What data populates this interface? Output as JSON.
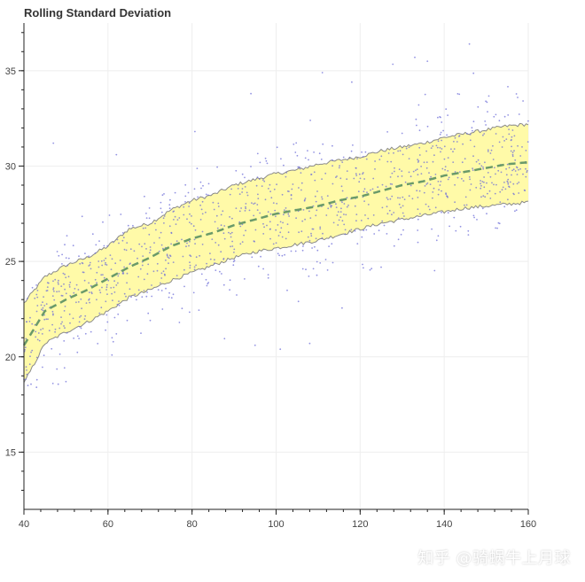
{
  "chart_data": {
    "type": "area",
    "title": "Rolling Standard Deviation",
    "xlabel": "",
    "ylabel": "",
    "xlim": [
      40,
      160
    ],
    "ylim": [
      12,
      37.5
    ],
    "x_ticks": [
      "40",
      "60",
      "80",
      "100",
      "120",
      "140",
      "160"
    ],
    "y_ticks": [
      "15",
      "20",
      "25",
      "30",
      "35"
    ],
    "grid": true,
    "x": [
      40,
      45,
      50,
      55,
      60,
      65,
      70,
      75,
      80,
      85,
      90,
      95,
      100,
      105,
      110,
      115,
      120,
      125,
      130,
      135,
      140,
      145,
      150,
      155,
      160
    ],
    "rolling_mean": [
      20.6,
      22.4,
      23.0,
      23.5,
      24.1,
      24.7,
      25.2,
      25.8,
      26.2,
      26.5,
      26.9,
      27.2,
      27.5,
      27.7,
      27.9,
      28.2,
      28.4,
      28.7,
      29.0,
      29.2,
      29.5,
      29.7,
      29.9,
      30.1,
      30.2
    ],
    "band_upper": [
      22.8,
      24.2,
      24.8,
      25.2,
      25.8,
      26.7,
      27.0,
      27.7,
      28.2,
      28.5,
      29.0,
      29.3,
      29.6,
      29.8,
      30.1,
      30.3,
      30.5,
      30.8,
      31.0,
      31.2,
      31.5,
      31.7,
      31.9,
      32.1,
      32.2
    ],
    "band_lower": [
      18.6,
      20.7,
      21.3,
      21.8,
      22.4,
      23.1,
      23.5,
      24.0,
      24.4,
      24.8,
      25.2,
      25.5,
      25.7,
      25.9,
      26.1,
      26.4,
      26.7,
      27.0,
      27.2,
      27.4,
      27.6,
      27.8,
      27.9,
      28.0,
      28.1
    ],
    "scatter": {
      "count": 1100,
      "color": "#6f6fd8",
      "spread_sd": 1.7,
      "outliers": [
        [
          47,
          31.2
        ],
        [
          62,
          30.6
        ],
        [
          94,
          33.8
        ],
        [
          111,
          34.9
        ],
        [
          118,
          34.4
        ],
        [
          133,
          35.7
        ],
        [
          136,
          35.5
        ],
        [
          146,
          36.4
        ],
        [
          95,
          20.6
        ],
        [
          108,
          20.7
        ],
        [
          62,
          21.2
        ],
        [
          77,
          21.8
        ],
        [
          101,
          20.4
        ],
        [
          43,
          18.4
        ],
        [
          50,
          18.7
        ],
        [
          125,
          24.7
        ],
        [
          147,
          27.4
        ],
        [
          155,
          29.2
        ]
      ]
    },
    "colors": {
      "band_fill": "#fffaa8",
      "band_edge": "#8a8a8a",
      "mean_line": "#6a9a6a",
      "grid": "#eeeeee",
      "axis": "#222222"
    }
  },
  "watermark": "知乎 @骑蜗牛上月球"
}
